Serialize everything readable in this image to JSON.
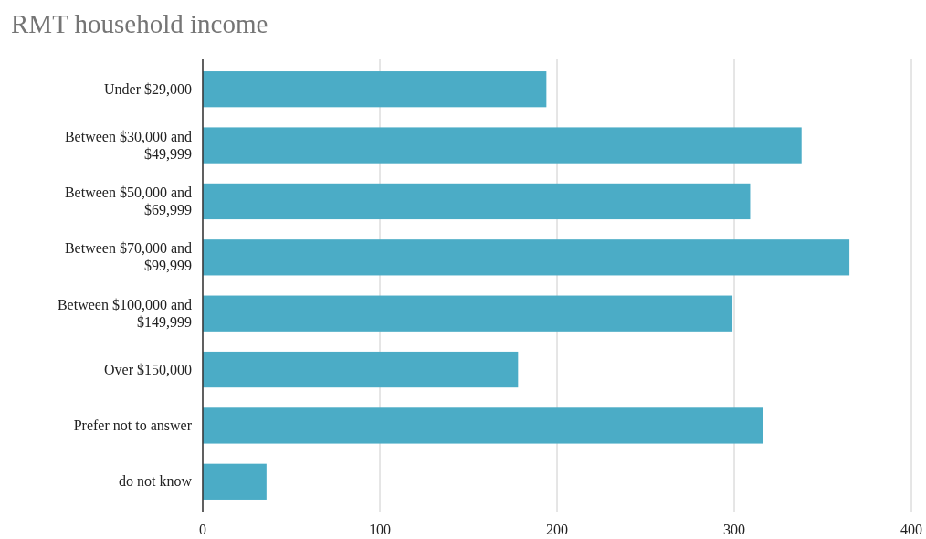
{
  "chart_data": {
    "type": "bar",
    "orientation": "horizontal",
    "title": "RMT household income",
    "categories": [
      "Under $29,000",
      "Between $30,000 and $49,999",
      "Between $50,000 and $69,999",
      "Between $70,000 and $99,999",
      "Between $100,000 and $149,999",
      "Over $150,000",
      "Prefer not to answer",
      "do not know"
    ],
    "values": [
      194,
      338,
      309,
      365,
      299,
      178,
      316,
      36
    ],
    "color": "#4bacc6",
    "xlim": [
      0,
      400
    ],
    "xticks": [
      0,
      100,
      200,
      300,
      400
    ],
    "grid": "x"
  }
}
